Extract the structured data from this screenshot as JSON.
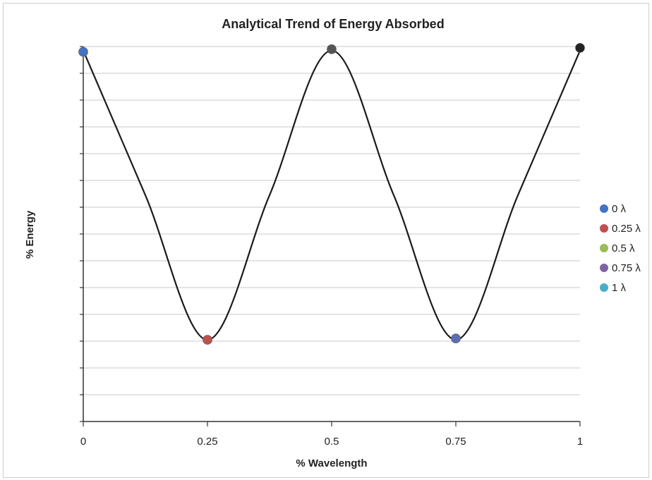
{
  "chart_data": {
    "type": "scatter",
    "title": "Analytical Trend of Energy Absorbed",
    "xlabel": "% Wavelength",
    "ylabel": "% Energy",
    "xlim": [
      0,
      1
    ],
    "ylim": [
      0,
      14
    ],
    "x_tick_labels": [
      "0",
      "0.25",
      "0.5",
      "0.75",
      "1"
    ],
    "x_ticks": [
      0,
      0.25,
      0.5,
      0.75,
      1
    ],
    "y_tick_count": 14,
    "y_tick_labels_shown": false,
    "grid": "horizontal",
    "legend_position": "right",
    "curve": {
      "kind": "smooth",
      "x": [
        0,
        0.125,
        0.25,
        0.375,
        0.5,
        0.625,
        0.75,
        0.875,
        1.0
      ],
      "y": [
        13.85,
        8.45,
        3.05,
        8.45,
        13.85,
        8.45,
        3.05,
        8.45,
        13.85
      ]
    },
    "series": [
      {
        "name": "0 λ",
        "color": "#4472c4",
        "x": [
          0
        ],
        "y": [
          13.8
        ]
      },
      {
        "name": "0.25 λ",
        "color": "#c0504d",
        "x": [
          0.25
        ],
        "y": [
          3.05
        ]
      },
      {
        "name": "0.5 λ",
        "color": "#9bbb59",
        "x": [
          0.5
        ],
        "y": [
          13.9
        ]
      },
      {
        "name": "0.75 λ",
        "color": "#8064a2",
        "x": [
          0.75
        ],
        "y": [
          3.1
        ]
      },
      {
        "name": "1 λ",
        "color": "#4aacc6",
        "x": [
          1
        ],
        "y": [
          13.95
        ]
      }
    ],
    "point_render_colors": [
      "#4472c4",
      "#c0504d",
      "#555555",
      "#5b6fb5",
      "#222222"
    ]
  }
}
